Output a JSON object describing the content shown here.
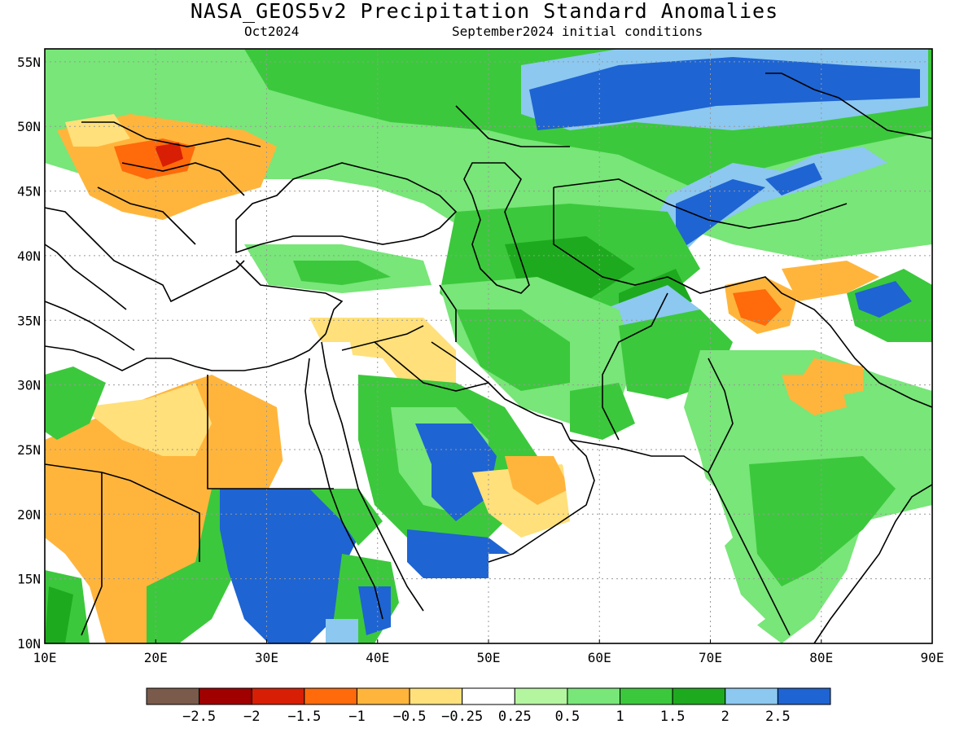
{
  "header": {
    "title": "NASA_GEOS5v2 Precipitation Standard Anomalies",
    "valid_month": "Oct2024",
    "init": "September2024 initial conditions"
  },
  "map": {
    "lon_range": [
      10,
      90
    ],
    "lat_range": [
      10,
      56
    ],
    "lon_ticks": [
      10,
      20,
      30,
      40,
      50,
      60,
      70,
      80,
      90
    ],
    "lat_ticks": [
      10,
      15,
      20,
      25,
      30,
      35,
      40,
      45,
      50,
      55
    ],
    "lon_labels": [
      "10E",
      "20E",
      "30E",
      "40E",
      "50E",
      "60E",
      "70E",
      "80E",
      "90E"
    ],
    "lat_labels": [
      "10N",
      "15N",
      "20N",
      "25N",
      "30N",
      "35N",
      "40N",
      "45N",
      "50N",
      "55N"
    ],
    "gridlines": true,
    "gridline_style": "dotted"
  },
  "colorbar": {
    "colors": [
      "#7a5a4a",
      "#a00000",
      "#d81e05",
      "#ff6a0a",
      "#ffb53c",
      "#ffe07a",
      "#ffffff",
      "#b4f5a0",
      "#78e678",
      "#3cc83c",
      "#1eaa1e",
      "#8cc8f0",
      "#1e64d2"
    ],
    "labels": [
      "−2.5",
      "−2",
      "−1.5",
      "−1",
      "−0.5",
      "−0.25",
      "0.25",
      "0.5",
      "1",
      "1.5",
      "2",
      "2.5"
    ]
  }
}
